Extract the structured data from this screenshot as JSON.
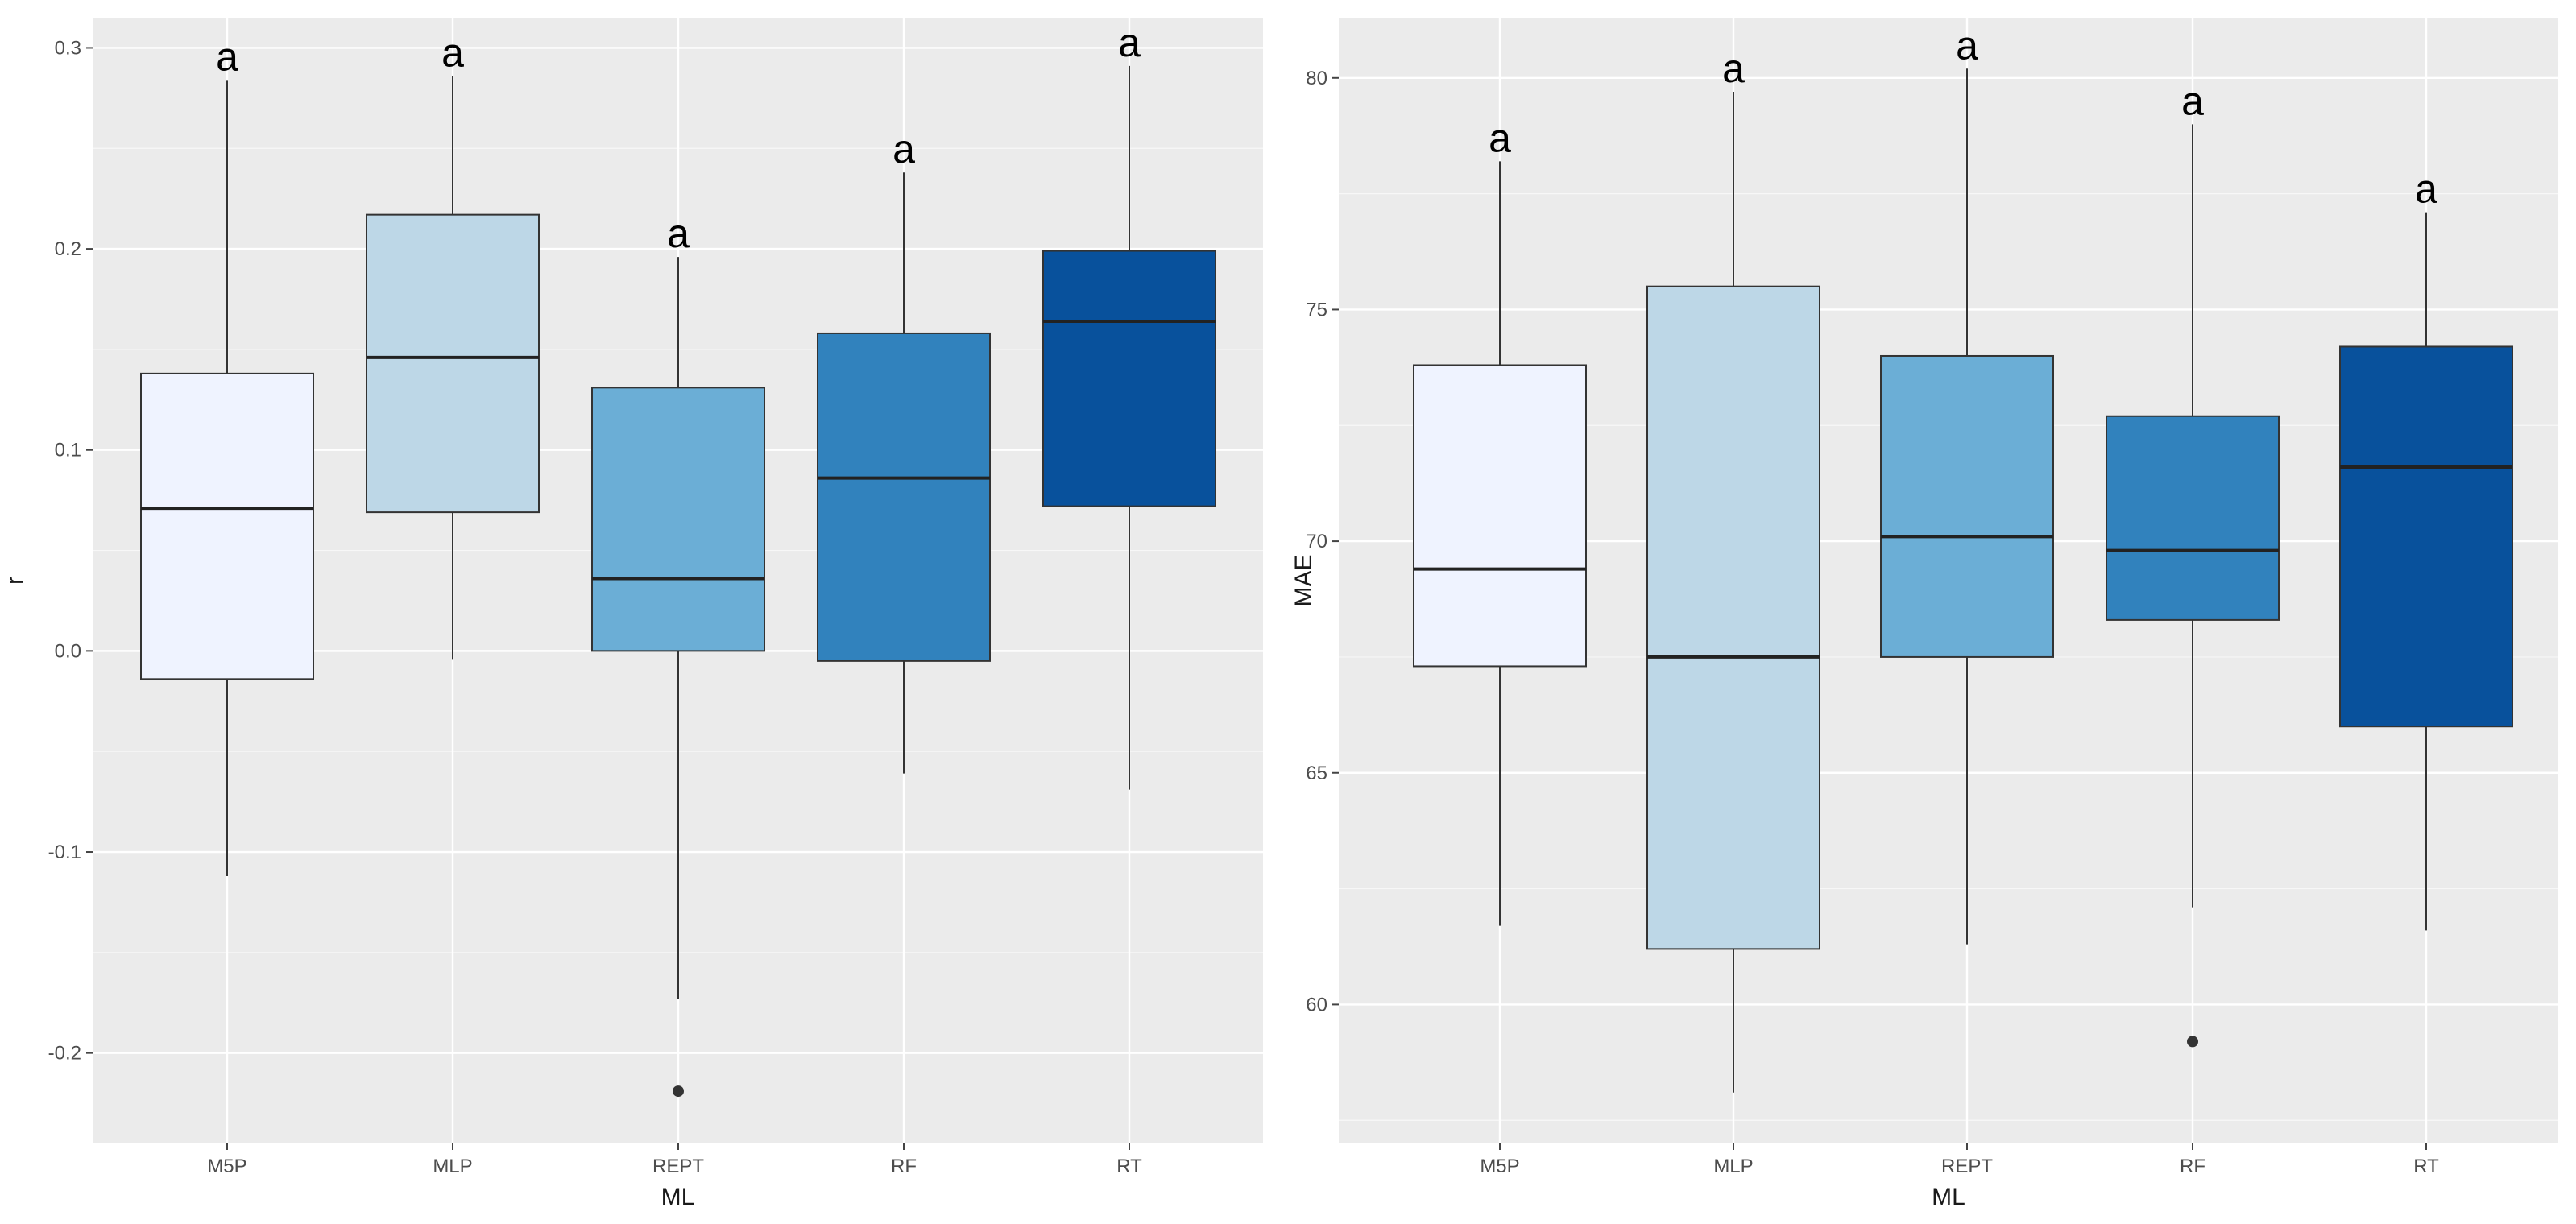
{
  "chart_data": [
    {
      "type": "boxplot",
      "xlabel": "ML",
      "ylabel": "r",
      "ylim": [
        -0.245,
        0.315
      ],
      "yticks": [
        -0.2,
        -0.1,
        0.0,
        0.1,
        0.2,
        0.3
      ],
      "ytick_labels": [
        "-0.2",
        "-0.1",
        "0.0",
        "0.1",
        "0.2",
        "0.3"
      ],
      "categories": [
        "M5P",
        "MLP",
        "REPT",
        "RF",
        "RT"
      ],
      "fill_colors": [
        "#eff3ff",
        "#bdd7e7",
        "#6baed6",
        "#3182bd",
        "#08519c"
      ],
      "boxes": [
        {
          "category": "M5P",
          "whisker_low": -0.112,
          "q1": -0.014,
          "median": 0.071,
          "q3": 0.138,
          "whisker_high": 0.284,
          "outliers": [],
          "letter": "a"
        },
        {
          "category": "MLP",
          "whisker_low": -0.004,
          "q1": 0.069,
          "median": 0.146,
          "q3": 0.217,
          "whisker_high": 0.286,
          "outliers": [],
          "letter": "a"
        },
        {
          "category": "REPT",
          "whisker_low": -0.173,
          "q1": 0.0,
          "median": 0.036,
          "q3": 0.131,
          "whisker_high": 0.196,
          "outliers": [
            -0.219
          ],
          "letter": "a"
        },
        {
          "category": "RF",
          "whisker_low": -0.061,
          "q1": -0.005,
          "median": 0.086,
          "q3": 0.158,
          "whisker_high": 0.238,
          "outliers": [],
          "letter": "a"
        },
        {
          "category": "RT",
          "whisker_low": -0.069,
          "q1": 0.072,
          "median": 0.164,
          "q3": 0.199,
          "whisker_high": 0.291,
          "outliers": [],
          "letter": "a"
        }
      ]
    },
    {
      "type": "boxplot",
      "xlabel": "ML",
      "ylabel": "MAE",
      "ylim": [
        57.0,
        81.3
      ],
      "yticks": [
        60,
        65,
        70,
        75,
        80
      ],
      "ytick_labels": [
        "60",
        "65",
        "70",
        "75",
        "80"
      ],
      "categories": [
        "M5P",
        "MLP",
        "REPT",
        "RF",
        "RT"
      ],
      "fill_colors": [
        "#eff3ff",
        "#bdd7e7",
        "#6baed6",
        "#3182bd",
        "#08519c"
      ],
      "boxes": [
        {
          "category": "M5P",
          "whisker_low": 61.7,
          "q1": 67.3,
          "median": 69.4,
          "q3": 73.8,
          "whisker_high": 78.2,
          "outliers": [],
          "letter": "a"
        },
        {
          "category": "MLP",
          "whisker_low": 58.1,
          "q1": 61.2,
          "median": 67.5,
          "q3": 75.5,
          "whisker_high": 79.7,
          "outliers": [],
          "letter": "a"
        },
        {
          "category": "REPT",
          "whisker_low": 61.3,
          "q1": 67.5,
          "median": 70.1,
          "q3": 74.0,
          "whisker_high": 80.2,
          "outliers": [],
          "letter": "a"
        },
        {
          "category": "RF",
          "whisker_low": 62.1,
          "q1": 68.3,
          "median": 69.8,
          "q3": 72.7,
          "whisker_high": 79.0,
          "outliers": [
            59.2
          ],
          "letter": "a"
        },
        {
          "category": "RT",
          "whisker_low": 61.6,
          "q1": 66.0,
          "median": 71.6,
          "q3": 74.2,
          "whisker_high": 77.1,
          "outliers": [],
          "letter": "a"
        }
      ]
    }
  ]
}
